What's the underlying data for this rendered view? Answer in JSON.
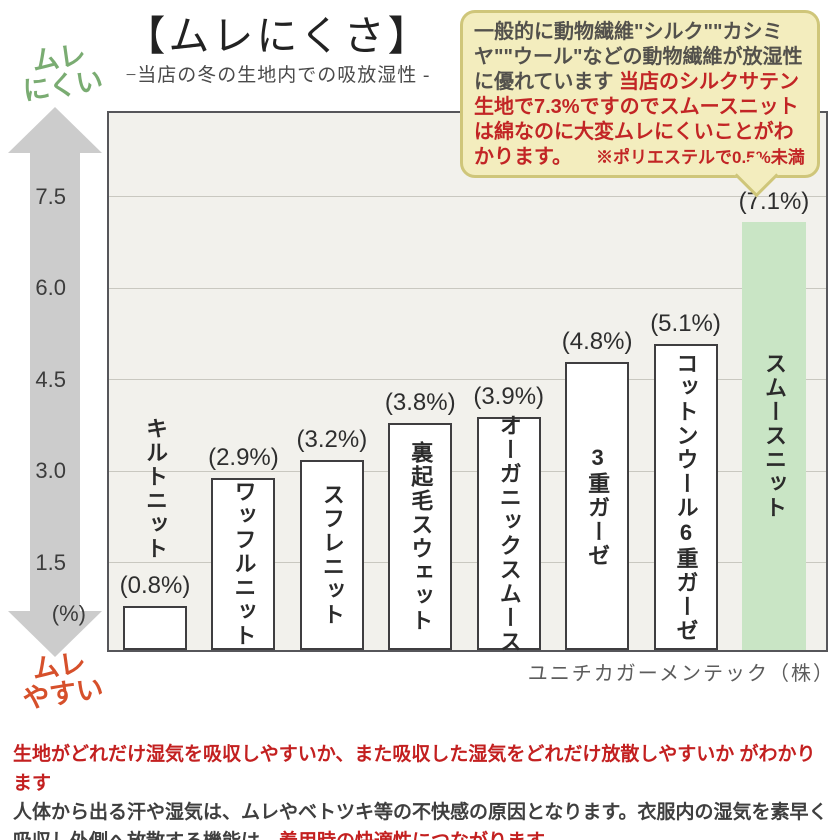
{
  "title": "【ムレにくさ】",
  "subtitle": "−当店の冬の生地内での吸放湿性 -",
  "axis_arrow": {
    "top_label_line1": "ムレ",
    "top_label_line2": "にくい",
    "bottom_label_line1": "ムレ",
    "bottom_label_line2": "やすい"
  },
  "y_axis": {
    "unit_label": "(%)"
  },
  "bubble": {
    "text_dark": "一般的に動物繊維\"シルク\"\"カシミヤ\"\"ウール\"などの動物繊維が放湿性に優れています ",
    "text_red": "当店のシルクサテン生地で7.3%ですのでスムースニットは綿なのに大変ムレにくいことがわかります。",
    "note_red": "※ポリエステルで0.5%未満"
  },
  "chart_data": {
    "type": "bar",
    "title": "ムレにくさ −当店の冬の生地内での吸放湿性−",
    "categories": [
      "キルトニット",
      "ワッフルニット",
      "スフレニット",
      "裏起毛スウェット",
      "オーガニックスムース",
      "3重ガーゼ",
      "コットンウール6重ガーゼ",
      "スムースニット"
    ],
    "values": [
      0.8,
      2.9,
      3.2,
      3.8,
      3.9,
      4.8,
      5.1,
      7.1
    ],
    "value_label_format": "({v}%)",
    "ylabel": "(%)",
    "y_ticks": [
      1.5,
      3.0,
      4.5,
      6.0,
      7.5
    ],
    "ylim": [
      0,
      8.8
    ],
    "grid": true,
    "legend": false,
    "highlight_index": 7,
    "bar_color": "#ffffff",
    "highlight_color": "#c9e5c5",
    "source": "ユニチカガーメンテック（株）"
  },
  "source_line": "ユニチカガーメンテック（株）",
  "footer": {
    "line1_red": "生地がどれだけ湿気を吸収しやすいか、また吸収した湿気をどれだけ放散しやすいか がわかります",
    "line2_dark": "人体から出る汗や湿気は、ムレやベトツキ等の不快感の原因となります。衣服内の湿気を素早く吸収し外側へ放散する機能は、",
    "line2_red": "着用時の快適性につながります。"
  },
  "colors": {
    "highlight_bar_green": "#c9e5c5",
    "bar_white": "#ffffff",
    "chart_background": "#f2f1ec",
    "bubble_background": "#f3edbe",
    "bubble_border": "#cfc67a",
    "red_text": "#c22525",
    "green_label": "#7aac72",
    "orange_label": "#d6502b",
    "arrow_gray": "#cccccc"
  }
}
